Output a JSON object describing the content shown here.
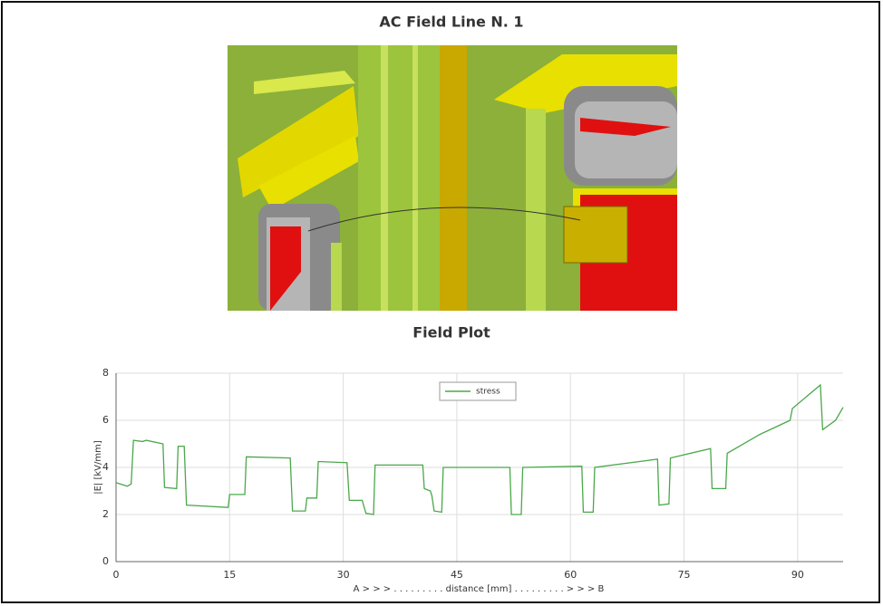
{
  "header": {
    "title": "AC Field Line N. 1"
  },
  "chart_data": {
    "type": "line",
    "title": "Field Plot",
    "x_label": "A > > >  .  .  .  .  .  .  .  .  .  distance  [mm]  .  .  .  .  .  .  .  .  .  > > > B",
    "y_label": "|E|  [kV/mm]",
    "x": [
      0,
      1.5,
      2,
      2.3,
      3.5,
      4,
      6.2,
      6.4,
      8,
      8.2,
      9,
      9.3,
      14.8,
      15,
      17,
      17.2,
      23,
      23.3,
      25,
      25.2,
      26.5,
      26.7,
      30.5,
      30.8,
      32.5,
      33,
      34,
      34.2,
      40.5,
      40.7,
      41.5,
      41.7,
      42,
      43,
      43.2,
      52,
      52.2,
      53.5,
      53.7,
      61.5,
      61.7,
      63,
      63.2,
      71.5,
      71.7,
      73,
      73.2,
      78.5,
      78.7,
      80.5,
      80.7,
      85,
      89,
      89.3,
      93,
      93.3,
      95,
      96
    ],
    "series": [
      {
        "name": "stress",
        "color": "#4aa84a",
        "values": [
          3.35,
          3.2,
          3.3,
          5.15,
          5.1,
          5.15,
          5.0,
          3.15,
          3.1,
          4.9,
          4.9,
          2.4,
          2.3,
          2.85,
          2.85,
          4.45,
          4.4,
          2.15,
          2.15,
          2.7,
          2.7,
          4.25,
          4.2,
          2.6,
          2.6,
          2.05,
          2.0,
          4.1,
          4.1,
          3.1,
          3.0,
          2.8,
          2.15,
          2.1,
          4.0,
          4.0,
          2.0,
          2.0,
          4.0,
          4.05,
          2.1,
          2.1,
          4.0,
          4.35,
          2.4,
          2.45,
          4.4,
          4.8,
          3.1,
          3.1,
          4.6,
          5.4,
          6.0,
          6.5,
          7.5,
          5.6,
          6.0,
          6.55
        ]
      }
    ],
    "xlim": [
      0,
      96
    ],
    "ylim": [
      0,
      8
    ],
    "xticks": [
      0,
      15,
      30,
      45,
      60,
      75,
      90
    ],
    "yticks": [
      0,
      2,
      4,
      6,
      8
    ],
    "grid": true,
    "legend": "top"
  }
}
